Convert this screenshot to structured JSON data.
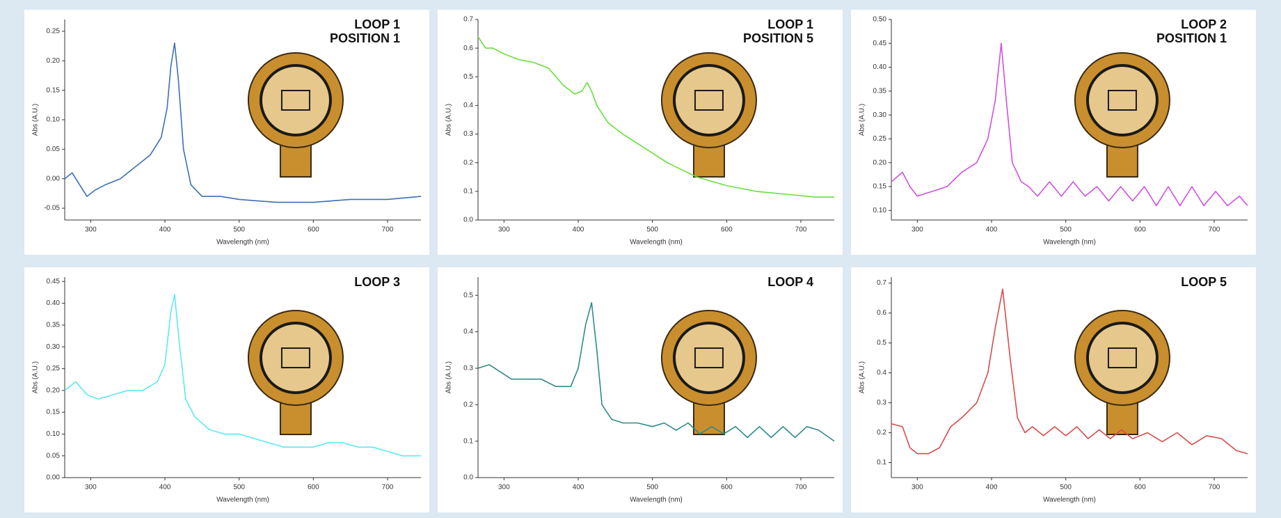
{
  "chart_data": [
    {
      "type": "line",
      "title": [
        "LOOP 1",
        "POSITION 1"
      ],
      "xlabel": "Wavelength (nm)",
      "ylabel": "Abs (A.U.)",
      "color": "#3b6fb5",
      "xlim": [
        265,
        745
      ],
      "xticks": [
        300,
        400,
        500,
        600,
        700
      ],
      "ylim": [
        -0.07,
        0.27
      ],
      "yticks": [
        -0.05,
        {
          "value": 0,
          "label": "0.00"
        },
        0.05,
        {
          "value": 0.1,
          "label": "0.10"
        },
        0.15,
        {
          "value": 0.2,
          "label": "0.20"
        },
        0.25
      ],
      "x": [
        265,
        275,
        285,
        295,
        305,
        320,
        340,
        360,
        380,
        395,
        403,
        408,
        413,
        418,
        425,
        435,
        450,
        475,
        500,
        550,
        600,
        650,
        700,
        745
      ],
      "values": [
        0.0,
        0.01,
        -0.01,
        -0.03,
        -0.02,
        -0.01,
        0.0,
        0.02,
        0.04,
        0.07,
        0.12,
        0.19,
        0.23,
        0.17,
        0.05,
        -0.01,
        -0.03,
        -0.03,
        -0.035,
        -0.04,
        -0.04,
        -0.035,
        -0.035,
        -0.03
      ]
    },
    {
      "type": "line",
      "title": [
        "LOOP 1",
        "POSITION 5"
      ],
      "xlabel": "Wavelength (nm)",
      "ylabel": "Abs (A.U.)",
      "color": "#66e03a",
      "xlim": [
        265,
        745
      ],
      "xticks": [
        300,
        400,
        500,
        600,
        700
      ],
      "ylim": [
        0,
        0.7
      ],
      "yticks": [
        {
          "value": 0,
          "label": "0.0"
        },
        0.1,
        0.2,
        0.3,
        0.4,
        0.5,
        0.6,
        0.7
      ],
      "x": [
        265,
        275,
        285,
        300,
        320,
        340,
        360,
        380,
        395,
        405,
        412,
        418,
        425,
        440,
        460,
        490,
        520,
        560,
        600,
        640,
        680,
        720,
        745
      ],
      "values": [
        0.64,
        0.6,
        0.6,
        0.58,
        0.56,
        0.55,
        0.53,
        0.47,
        0.44,
        0.45,
        0.48,
        0.45,
        0.4,
        0.34,
        0.3,
        0.25,
        0.2,
        0.15,
        0.12,
        0.1,
        0.09,
        0.08,
        0.08
      ]
    },
    {
      "type": "line",
      "title": [
        "LOOP 2",
        "POSITION 1"
      ],
      "xlabel": "Wavelength (nm)",
      "ylabel": "Abs (A.U.)",
      "color": "#d050e0",
      "xlim": [
        265,
        745
      ],
      "xticks": [
        300,
        400,
        500,
        600,
        700
      ],
      "ylim": [
        0.08,
        0.5
      ],
      "yticks": [
        {
          "value": 0.1,
          "label": "0.10"
        },
        0.15,
        {
          "value": 0.2,
          "label": "0.20"
        },
        0.25,
        {
          "value": 0.3,
          "label": "0.30"
        },
        0.35,
        {
          "value": 0.4,
          "label": "0.40"
        },
        0.45,
        {
          "value": 0.5,
          "label": "0.50"
        }
      ],
      "x": [
        265,
        280,
        290,
        300,
        320,
        340,
        360,
        380,
        395,
        405,
        413,
        420,
        428,
        440,
        450,
        462,
        478,
        494,
        510,
        526,
        542,
        558,
        574,
        590,
        606,
        622,
        638,
        654,
        670,
        686,
        702,
        718,
        734,
        745
      ],
      "values": [
        0.16,
        0.18,
        0.15,
        0.13,
        0.14,
        0.15,
        0.18,
        0.2,
        0.25,
        0.33,
        0.45,
        0.33,
        0.2,
        0.16,
        0.15,
        0.13,
        0.16,
        0.13,
        0.16,
        0.13,
        0.15,
        0.12,
        0.15,
        0.12,
        0.15,
        0.11,
        0.15,
        0.11,
        0.15,
        0.11,
        0.14,
        0.11,
        0.13,
        0.11
      ]
    },
    {
      "type": "line",
      "title": [
        "LOOP 3"
      ],
      "xlabel": "Wavelength (nm)",
      "ylabel": "Abs (A.U.)",
      "color": "#5ee8f0",
      "xlim": [
        265,
        745
      ],
      "xticks": [
        300,
        400,
        500,
        600,
        700
      ],
      "ylim": [
        0,
        0.46
      ],
      "yticks": [
        {
          "value": 0,
          "label": "0.00"
        },
        0.05,
        {
          "value": 0.1,
          "label": "0.10"
        },
        0.15,
        {
          "value": 0.2,
          "label": "0.20"
        },
        0.25,
        {
          "value": 0.3,
          "label": "0.30"
        },
        0.35,
        {
          "value": 0.4,
          "label": "0.40"
        },
        0.45
      ],
      "x": [
        265,
        280,
        295,
        310,
        330,
        350,
        370,
        390,
        400,
        408,
        413,
        420,
        428,
        440,
        460,
        480,
        500,
        520,
        540,
        560,
        580,
        600,
        620,
        640,
        660,
        680,
        700,
        720,
        745
      ],
      "values": [
        0.2,
        0.22,
        0.19,
        0.18,
        0.19,
        0.2,
        0.2,
        0.22,
        0.26,
        0.38,
        0.42,
        0.3,
        0.18,
        0.14,
        0.11,
        0.1,
        0.1,
        0.09,
        0.08,
        0.07,
        0.07,
        0.07,
        0.08,
        0.08,
        0.07,
        0.07,
        0.06,
        0.05,
        0.05
      ]
    },
    {
      "type": "line",
      "title": [
        "LOOP 4"
      ],
      "xlabel": "Wavelength (nm)",
      "ylabel": "Abs (A.U.)",
      "color": "#2e8b86",
      "xlim": [
        265,
        745
      ],
      "xticks": [
        300,
        400,
        500,
        600,
        700
      ],
      "ylim": [
        0,
        0.55
      ],
      "yticks": [
        {
          "value": 0,
          "label": "0.0"
        },
        0.1,
        0.2,
        0.3,
        0.4,
        0.5
      ],
      "x": [
        265,
        280,
        295,
        310,
        330,
        350,
        370,
        390,
        400,
        410,
        418,
        425,
        432,
        445,
        460,
        480,
        500,
        516,
        532,
        548,
        564,
        580,
        596,
        612,
        628,
        644,
        660,
        676,
        692,
        708,
        724,
        745
      ],
      "values": [
        0.3,
        0.31,
        0.29,
        0.27,
        0.27,
        0.27,
        0.25,
        0.25,
        0.3,
        0.42,
        0.48,
        0.35,
        0.2,
        0.16,
        0.15,
        0.15,
        0.14,
        0.15,
        0.13,
        0.15,
        0.12,
        0.14,
        0.12,
        0.14,
        0.11,
        0.14,
        0.11,
        0.14,
        0.11,
        0.14,
        0.13,
        0.1
      ]
    },
    {
      "type": "line",
      "title": [
        "LOOP 5"
      ],
      "xlabel": "Wavelength (nm)",
      "ylabel": "Abs (A.U.)",
      "color": "#d94b4b",
      "xlim": [
        265,
        745
      ],
      "xticks": [
        300,
        400,
        500,
        600,
        700
      ],
      "ylim": [
        0.05,
        0.72
      ],
      "yticks": [
        0.1,
        0.2,
        0.3,
        0.4,
        0.5,
        0.6,
        0.7
      ],
      "x": [
        265,
        280,
        290,
        300,
        315,
        330,
        345,
        360,
        380,
        395,
        405,
        415,
        425,
        435,
        445,
        455,
        470,
        485,
        500,
        515,
        530,
        545,
        560,
        575,
        590,
        610,
        630,
        650,
        670,
        690,
        710,
        730,
        745
      ],
      "values": [
        0.23,
        0.22,
        0.15,
        0.13,
        0.13,
        0.15,
        0.22,
        0.25,
        0.3,
        0.4,
        0.55,
        0.68,
        0.45,
        0.25,
        0.2,
        0.22,
        0.19,
        0.22,
        0.19,
        0.22,
        0.18,
        0.21,
        0.18,
        0.21,
        0.18,
        0.2,
        0.17,
        0.2,
        0.16,
        0.19,
        0.18,
        0.14,
        0.13
      ]
    }
  ]
}
